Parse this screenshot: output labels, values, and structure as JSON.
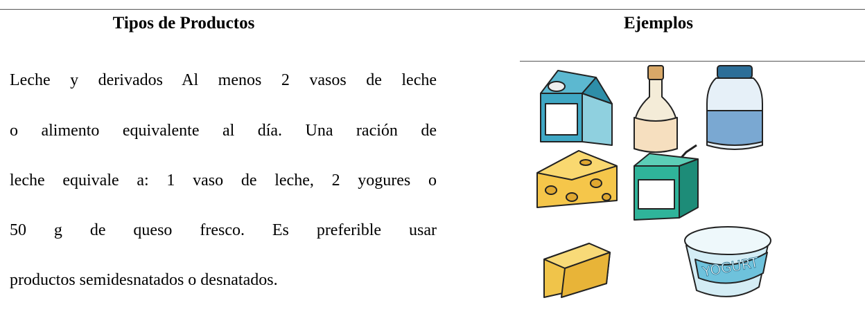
{
  "table": {
    "header": [
      "Tipos de Productos",
      "Ejemplos"
    ],
    "rows": [
      [
        [
          "Leche y derivados Al menos 2 vasos de leche",
          "o alimento equivalente al día. Una ración de",
          "leche equivale a: 1 vaso de leche, 2 yogures o",
          "50 g de queso fresco. Es preferible usar",
          "productos semidesnatados o desnatados."
        ],
        {
          "image_text": "YOGURT"
        }
      ]
    ]
  }
}
